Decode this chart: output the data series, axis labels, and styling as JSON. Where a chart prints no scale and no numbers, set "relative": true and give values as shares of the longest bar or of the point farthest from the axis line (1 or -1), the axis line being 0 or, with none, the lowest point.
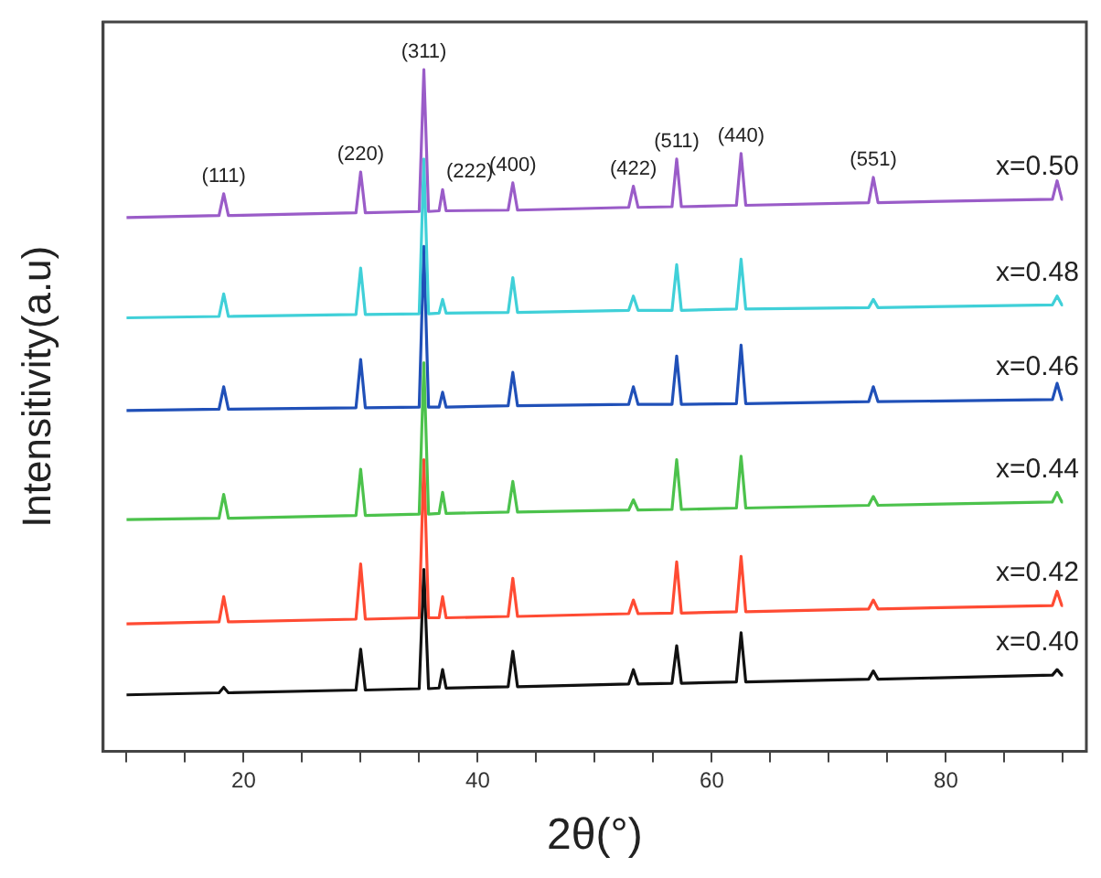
{
  "chart_data": {
    "type": "line",
    "relative": true,
    "xlabel": "2θ(°)",
    "ylabel": "Intensitivity(a.u)",
    "xlim": [
      8,
      92
    ],
    "xticks": [
      {
        "value": 10,
        "label": null
      },
      {
        "value": 15,
        "label": null
      },
      20,
      {
        "value": 25,
        "label": null
      },
      {
        "value": 30,
        "label": null
      },
      {
        "value": 35,
        "label": null
      },
      40,
      {
        "value": 45,
        "label": null
      },
      {
        "value": 50,
        "label": null
      },
      {
        "value": 55,
        "label": null
      },
      60,
      {
        "value": 65,
        "label": null
      },
      {
        "value": 70,
        "label": null
      },
      {
        "value": 75,
        "label": null
      },
      80,
      {
        "value": 85,
        "label": null
      },
      {
        "value": 90,
        "label": null
      }
    ],
    "x": [
      10,
      17.9,
      18.3,
      18.7,
      29.6,
      30.0,
      30.4,
      35.0,
      35.4,
      35.8,
      36.7,
      37.0,
      37.3,
      42.6,
      43.0,
      43.4,
      52.9,
      53.3,
      53.7,
      56.6,
      57.0,
      57.4,
      62.1,
      62.5,
      62.9,
      73.4,
      73.8,
      74.2,
      89.1,
      89.5,
      89.9,
      90
    ],
    "legend": false,
    "grid": false,
    "marker": "none",
    "line_style": "solid",
    "series": [
      {
        "name": "x=0.40",
        "color": "#111111",
        "values": [
          0.083,
          0.086,
          0.094,
          0.086,
          0.09,
          0.15,
          0.09,
          0.092,
          0.267,
          0.092,
          0.093,
          0.12,
          0.093,
          0.095,
          0.147,
          0.095,
          0.099,
          0.12,
          0.099,
          0.1,
          0.155,
          0.1,
          0.102,
          0.174,
          0.102,
          0.106,
          0.118,
          0.106,
          0.112,
          0.12,
          0.112,
          0.112
        ]
      },
      {
        "name": "x=0.42",
        "color": "#ff4b33",
        "values": [
          0.187,
          0.19,
          0.227,
          0.19,
          0.194,
          0.275,
          0.194,
          0.196,
          0.428,
          0.196,
          0.196,
          0.227,
          0.196,
          0.198,
          0.254,
          0.198,
          0.202,
          0.222,
          0.202,
          0.203,
          0.278,
          0.203,
          0.205,
          0.286,
          0.205,
          0.209,
          0.222,
          0.209,
          0.214,
          0.235,
          0.214,
          0.214
        ]
      },
      {
        "name": "x=0.44",
        "color": "#4cc24c",
        "values": [
          0.34,
          0.342,
          0.377,
          0.342,
          0.346,
          0.414,
          0.346,
          0.348,
          0.57,
          0.348,
          0.349,
          0.38,
          0.349,
          0.351,
          0.396,
          0.351,
          0.354,
          0.369,
          0.354,
          0.355,
          0.428,
          0.355,
          0.357,
          0.433,
          0.357,
          0.361,
          0.374,
          0.361,
          0.366,
          0.38,
          0.366,
          0.366
        ]
      },
      {
        "name": "x=0.46",
        "color": "#2050b8",
        "values": [
          0.5,
          0.502,
          0.535,
          0.502,
          0.504,
          0.575,
          0.504,
          0.505,
          0.741,
          0.505,
          0.505,
          0.527,
          0.505,
          0.507,
          0.556,
          0.507,
          0.509,
          0.535,
          0.509,
          0.509,
          0.58,
          0.509,
          0.51,
          0.596,
          0.51,
          0.513,
          0.535,
          0.513,
          0.516,
          0.54,
          0.516,
          0.516
        ]
      },
      {
        "name": "x=0.48",
        "color": "#40d0d8",
        "values": [
          0.636,
          0.638,
          0.671,
          0.638,
          0.641,
          0.709,
          0.641,
          0.642,
          0.869,
          0.642,
          0.643,
          0.663,
          0.643,
          0.644,
          0.695,
          0.644,
          0.647,
          0.668,
          0.647,
          0.647,
          0.714,
          0.647,
          0.649,
          0.722,
          0.649,
          0.651,
          0.663,
          0.651,
          0.655,
          0.668,
          0.655,
          0.655
        ]
      },
      {
        "name": "x=0.50",
        "color": "#9a5cc8",
        "values": [
          0.783,
          0.786,
          0.818,
          0.786,
          0.79,
          0.85,
          0.79,
          0.792,
          1.0,
          0.792,
          0.793,
          0.824,
          0.793,
          0.794,
          0.834,
          0.794,
          0.798,
          0.829,
          0.798,
          0.799,
          0.869,
          0.799,
          0.801,
          0.877,
          0.801,
          0.805,
          0.842,
          0.805,
          0.81,
          0.837,
          0.81,
          0.81
        ]
      }
    ],
    "annotations": [
      {
        "text": "(111)",
        "x": 18.3,
        "y": 0.818
      },
      {
        "text": "(220)",
        "x": 30.0,
        "y": 0.85
      },
      {
        "text": "(311)",
        "x": 35.4,
        "y": 1.0
      },
      {
        "text": "(222)",
        "x": 37.0,
        "y": 0.824
      },
      {
        "text": "(400)",
        "x": 43.0,
        "y": 0.834
      },
      {
        "text": "(422)",
        "x": 53.3,
        "y": 0.829
      },
      {
        "text": "(511)",
        "x": 57.0,
        "y": 0.869
      },
      {
        "text": "(440)",
        "x": 62.5,
        "y": 0.877
      },
      {
        "text": "(551)",
        "x": 73.8,
        "y": 0.842
      }
    ]
  }
}
